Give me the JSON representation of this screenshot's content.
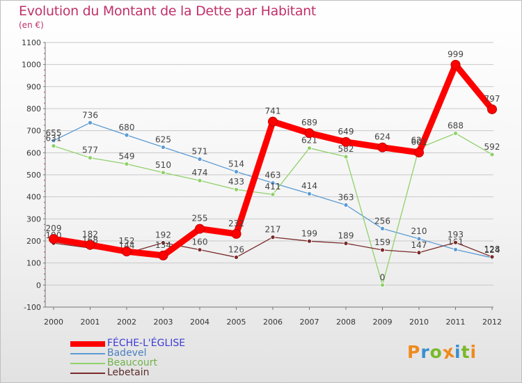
{
  "header": {
    "title": "Evolution du Montant de la Dette par Habitant",
    "subtitle": "(en €)"
  },
  "colors": {
    "title": "#c0306a",
    "axis": "#777777",
    "grid": "#c8c8c8",
    "tick_marks": "#c0306a"
  },
  "logo": {
    "letters": [
      "P",
      "r",
      "o",
      "x",
      "i",
      "t",
      "i"
    ],
    "colors": [
      "#f08a1c",
      "#3a8fd1",
      "#7ab929",
      "#f08a1c",
      "#3a8fd1",
      "#7ab929",
      "#f08a1c"
    ]
  },
  "chart_data": {
    "type": "line",
    "title": "Evolution du Montant de la Dette par Habitant",
    "subtitle": "(en €)",
    "x": [
      "2000",
      "2001",
      "2002",
      "2003",
      "2004",
      "2005",
      "2006",
      "2007",
      "2008",
      "2009",
      "2010",
      "2011",
      "2012"
    ],
    "ylim": [
      -100,
      1100
    ],
    "yticks": [
      -100,
      0,
      100,
      200,
      300,
      400,
      500,
      600,
      700,
      800,
      900,
      1000,
      1100
    ],
    "grid": true,
    "legend_position": "bottom-left",
    "series": [
      {
        "name": "FÉCHE-L'ÉGLISE",
        "color": "#ff0000",
        "legend_text_color": "#3b3bd6",
        "emphasis": true,
        "values": [
          209,
          182,
          152,
          134,
          255,
          232,
          741,
          689,
          649,
          624,
          601,
          999,
          797
        ],
        "labels": [
          "209",
          "182",
          "152",
          "134",
          "255",
          "232",
          "741",
          "689",
          "649",
          "624",
          "601",
          "999",
          "797"
        ]
      },
      {
        "name": "Badevel",
        "color": "#5b9bd5",
        "legend_text_color": "#4a7ebf",
        "values": [
          655,
          736,
          680,
          625,
          571,
          514,
          463,
          414,
          363,
          256,
          210,
          161,
          124
        ],
        "labels": [
          "655",
          "736",
          "680",
          "625",
          "571",
          "514",
          "463",
          "414",
          "363",
          "256",
          "210",
          "161",
          "124"
        ]
      },
      {
        "name": "Beaucourt",
        "color": "#8fd16a",
        "legend_text_color": "#6fb24a",
        "values": [
          631,
          577,
          549,
          510,
          474,
          433,
          411,
          621,
          582,
          0,
          621,
          688,
          592
        ],
        "labels": [
          "631",
          "577",
          "549",
          "510",
          "474",
          "433",
          "411",
          "621",
          "582",
          "0",
          "621",
          "688",
          "592"
        ]
      },
      {
        "name": "Lebetain",
        "color": "#7a2a2a",
        "legend_text_color": "#5c2a2a",
        "values": [
          190,
          168,
          144,
          192,
          160,
          126,
          217,
          199,
          189,
          159,
          147,
          193,
          128
        ],
        "labels": [
          "190",
          "168",
          "144",
          "192",
          "160",
          "126",
          "217",
          "199",
          "189",
          "159",
          "147",
          "193",
          "128"
        ]
      }
    ]
  }
}
